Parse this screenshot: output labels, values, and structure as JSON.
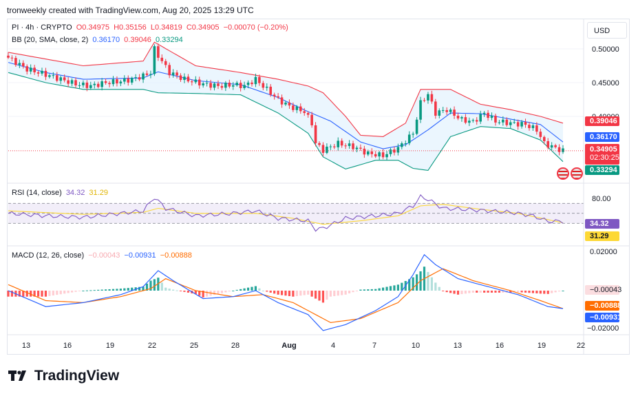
{
  "header": {
    "text": "tronweekly created with TradingView.com, Aug 20, 2025 13:29 UTC"
  },
  "symbol_legend": {
    "name": "PI · 4h · CRYPTO",
    "o": "O0.34975",
    "h": "H0.35156",
    "l": "L0.34819",
    "c": "C0.34905",
    "chg": "−0.00070 (−0.20%)"
  },
  "bb_legend": {
    "name": "BB (20, SMA, close, 2)",
    "v1": "0.36170",
    "v2": "0.39046",
    "v3": "0.33294"
  },
  "rsi_legend": {
    "name": "RSI (14, close)",
    "v1": "34.32",
    "v2": "31.29"
  },
  "macd_legend": {
    "name": "MACD (12, 26, close)",
    "v1": "−0.00043",
    "v2": "−0.00931",
    "v3": "−0.00888"
  },
  "currency_button": "USD",
  "price_badges": {
    "upper": "0.39046",
    "basis": "0.36170",
    "last": "0.34905",
    "countdown": "02:30:25",
    "lower": "0.33294"
  },
  "rsi_badges": {
    "rsi": "34.32",
    "ma": "31.29"
  },
  "macd_badges": {
    "hist": "−0.00043",
    "signal": "−0.00888",
    "macd": "−0.00931"
  },
  "footer": {
    "brand": "TradingView"
  },
  "colors": {
    "up": "#089981",
    "down": "#f23645",
    "bb_upper": "#f23645",
    "bb_basis": "#2962ff",
    "bb_lower": "#089981",
    "rsi": "#7e57c2",
    "rsi_ma": "#fdd835",
    "macd": "#2962ff",
    "signal": "#ff6d00"
  },
  "chart_data": [
    {
      "type": "candlestick",
      "title": "PI · 4h · CRYPTO",
      "x_ticks": [
        "13",
        "16",
        "19",
        "22",
        "25",
        "28",
        "Aug",
        "4",
        "7",
        "10",
        "13",
        "16",
        "19",
        "22"
      ],
      "y_ticks": [
        "0.50000",
        "0.45000",
        "0.40000"
      ],
      "ylim": [
        0.32,
        0.52
      ],
      "close_keypoints": [
        [
          0,
          0.487
        ],
        [
          5,
          0.47
        ],
        [
          10,
          0.462
        ],
        [
          14,
          0.455
        ],
        [
          18,
          0.448
        ],
        [
          22,
          0.445
        ],
        [
          26,
          0.45
        ],
        [
          30,
          0.452
        ],
        [
          33,
          0.455
        ],
        [
          36,
          0.46
        ],
        [
          38,
          0.465
        ],
        [
          39,
          0.5
        ],
        [
          40,
          0.49
        ],
        [
          43,
          0.465
        ],
        [
          47,
          0.455
        ],
        [
          52,
          0.448
        ],
        [
          56,
          0.445
        ],
        [
          60,
          0.447
        ],
        [
          63,
          0.445
        ],
        [
          66,
          0.455
        ],
        [
          69,
          0.44
        ],
        [
          72,
          0.425
        ],
        [
          75,
          0.415
        ],
        [
          79,
          0.407
        ],
        [
          81,
          0.39
        ],
        [
          82,
          0.36
        ],
        [
          84,
          0.35
        ],
        [
          88,
          0.36
        ],
        [
          92,
          0.355
        ],
        [
          96,
          0.345
        ],
        [
          100,
          0.342
        ],
        [
          104,
          0.353
        ],
        [
          108,
          0.375
        ],
        [
          110,
          0.42
        ],
        [
          112,
          0.433
        ],
        [
          114,
          0.405
        ],
        [
          117,
          0.41
        ],
        [
          121,
          0.395
        ],
        [
          124,
          0.392
        ],
        [
          127,
          0.405
        ],
        [
          130,
          0.393
        ],
        [
          134,
          0.39
        ],
        [
          138,
          0.388
        ],
        [
          141,
          0.38
        ],
        [
          143,
          0.36
        ],
        [
          146,
          0.353
        ],
        [
          148,
          0.349
        ]
      ],
      "bb_upper_keypoints": [
        [
          0,
          0.495
        ],
        [
          10,
          0.485
        ],
        [
          20,
          0.475
        ],
        [
          36,
          0.482
        ],
        [
          39,
          0.51
        ],
        [
          50,
          0.475
        ],
        [
          62,
          0.465
        ],
        [
          72,
          0.455
        ],
        [
          80,
          0.445
        ],
        [
          84,
          0.435
        ],
        [
          90,
          0.4
        ],
        [
          94,
          0.372
        ],
        [
          100,
          0.37
        ],
        [
          106,
          0.39
        ],
        [
          110,
          0.44
        ],
        [
          118,
          0.44
        ],
        [
          126,
          0.418
        ],
        [
          134,
          0.41
        ],
        [
          142,
          0.4
        ],
        [
          148,
          0.39
        ]
      ],
      "bb_basis_keypoints": [
        [
          0,
          0.48
        ],
        [
          10,
          0.465
        ],
        [
          20,
          0.455
        ],
        [
          36,
          0.457
        ],
        [
          40,
          0.466
        ],
        [
          50,
          0.453
        ],
        [
          62,
          0.447
        ],
        [
          72,
          0.428
        ],
        [
          80,
          0.407
        ],
        [
          86,
          0.393
        ],
        [
          94,
          0.362
        ],
        [
          100,
          0.352
        ],
        [
          106,
          0.358
        ],
        [
          112,
          0.38
        ],
        [
          118,
          0.405
        ],
        [
          126,
          0.404
        ],
        [
          134,
          0.396
        ],
        [
          142,
          0.388
        ],
        [
          148,
          0.362
        ]
      ],
      "bb_lower_keypoints": [
        [
          0,
          0.465
        ],
        [
          10,
          0.45
        ],
        [
          20,
          0.44
        ],
        [
          36,
          0.44
        ],
        [
          40,
          0.435
        ],
        [
          50,
          0.434
        ],
        [
          62,
          0.432
        ],
        [
          72,
          0.405
        ],
        [
          80,
          0.375
        ],
        [
          84,
          0.34
        ],
        [
          90,
          0.322
        ],
        [
          98,
          0.335
        ],
        [
          104,
          0.335
        ],
        [
          108,
          0.323
        ],
        [
          112,
          0.32
        ],
        [
          118,
          0.37
        ],
        [
          126,
          0.385
        ],
        [
          134,
          0.382
        ],
        [
          142,
          0.365
        ],
        [
          148,
          0.333
        ]
      ]
    },
    {
      "type": "line",
      "title": "RSI (14, close)",
      "y_ticks": [
        "80.00"
      ],
      "bands": [
        70,
        30
      ],
      "series": [
        {
          "name": "RSI",
          "keypoints": [
            [
              0,
              50
            ],
            [
              10,
              45
            ],
            [
              20,
              42
            ],
            [
              30,
              50
            ],
            [
              36,
              55
            ],
            [
              39,
              82
            ],
            [
              42,
              60
            ],
            [
              50,
              45
            ],
            [
              60,
              50
            ],
            [
              66,
              55
            ],
            [
              72,
              40
            ],
            [
              80,
              35
            ],
            [
              82,
              18
            ],
            [
              84,
              20
            ],
            [
              90,
              40
            ],
            [
              98,
              45
            ],
            [
              104,
              50
            ],
            [
              108,
              65
            ],
            [
              110,
              83
            ],
            [
              112,
              78
            ],
            [
              116,
              60
            ],
            [
              122,
              58
            ],
            [
              128,
              55
            ],
            [
              134,
              52
            ],
            [
              140,
              45
            ],
            [
              144,
              34
            ],
            [
              148,
              34
            ]
          ]
        },
        {
          "name": "MA",
          "keypoints": [
            [
              0,
              55
            ],
            [
              20,
              48
            ],
            [
              36,
              52
            ],
            [
              40,
              60
            ],
            [
              50,
              50
            ],
            [
              66,
              50
            ],
            [
              76,
              40
            ],
            [
              84,
              28
            ],
            [
              94,
              35
            ],
            [
              104,
              45
            ],
            [
              110,
              65
            ],
            [
              116,
              68
            ],
            [
              126,
              58
            ],
            [
              136,
              50
            ],
            [
              148,
              31
            ]
          ]
        }
      ]
    },
    {
      "type": "line",
      "title": "MACD (12, 26, close)",
      "y_ticks": [
        "0.02000",
        "−0.02000"
      ],
      "series": [
        {
          "name": "MACD",
          "keypoints": [
            [
              0,
              0.0
            ],
            [
              10,
              -0.008
            ],
            [
              20,
              -0.006
            ],
            [
              30,
              -0.002
            ],
            [
              36,
              0.002
            ],
            [
              40,
              0.01
            ],
            [
              44,
              0.005
            ],
            [
              52,
              -0.004
            ],
            [
              60,
              -0.003
            ],
            [
              66,
              0.0
            ],
            [
              72,
              -0.006
            ],
            [
              80,
              -0.012
            ],
            [
              84,
              -0.02
            ],
            [
              90,
              -0.017
            ],
            [
              98,
              -0.01
            ],
            [
              104,
              -0.003
            ],
            [
              108,
              0.008
            ],
            [
              111,
              0.018
            ],
            [
              114,
              0.013
            ],
            [
              120,
              0.006
            ],
            [
              128,
              0.002
            ],
            [
              136,
              -0.002
            ],
            [
              144,
              -0.008
            ],
            [
              148,
              -0.009
            ]
          ]
        },
        {
          "name": "Signal",
          "keypoints": [
            [
              0,
              0.003
            ],
            [
              10,
              -0.005
            ],
            [
              20,
              -0.006
            ],
            [
              30,
              -0.003
            ],
            [
              38,
              0.001
            ],
            [
              42,
              0.006
            ],
            [
              50,
              0.0
            ],
            [
              60,
              -0.003
            ],
            [
              68,
              -0.002
            ],
            [
              76,
              -0.006
            ],
            [
              86,
              -0.016
            ],
            [
              94,
              -0.014
            ],
            [
              104,
              -0.006
            ],
            [
              110,
              0.005
            ],
            [
              116,
              0.011
            ],
            [
              124,
              0.005
            ],
            [
              134,
              0.0
            ],
            [
              142,
              -0.005
            ],
            [
              148,
              -0.009
            ]
          ]
        }
      ]
    }
  ]
}
